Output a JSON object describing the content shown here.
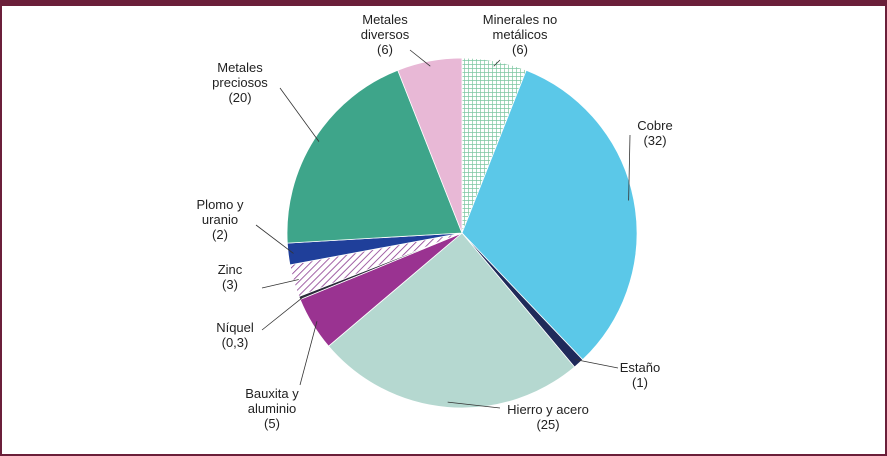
{
  "chart_data": {
    "type": "pie",
    "categories": [
      "Minerales no\nmetálicos",
      "Cobre",
      "Estaño",
      "Hierro y acero",
      "Bauxita y\naluminio",
      "Níquel",
      "Zinc",
      "Plomo y\nuranio",
      "Metales\npreciosos",
      "Metales\ndiversos"
    ],
    "values": [
      6,
      32,
      1,
      25,
      5,
      0.3,
      3,
      2,
      20,
      6
    ],
    "value_labels": [
      "(6)",
      "(32)",
      "(1)",
      "(25)",
      "(5)",
      "(0,3)",
      "(3)",
      "(2)",
      "(20)",
      "(6)"
    ],
    "colors": [
      "#ffffff",
      "#5bc8e8",
      "#1f2a5a",
      "#b5d8d0",
      "#9a3391",
      "#2a2a3a",
      "#ffffff",
      "#1f3f9a",
      "#3ea58a",
      "#e8b8d6"
    ],
    "patterns": [
      {
        "index": 0,
        "style": "crosshatch",
        "color": "#7cc6a0"
      },
      {
        "index": 6,
        "style": "diagonal",
        "color": "#8a3a8f"
      }
    ],
    "start_angle": 0,
    "direction": "clockwise"
  }
}
